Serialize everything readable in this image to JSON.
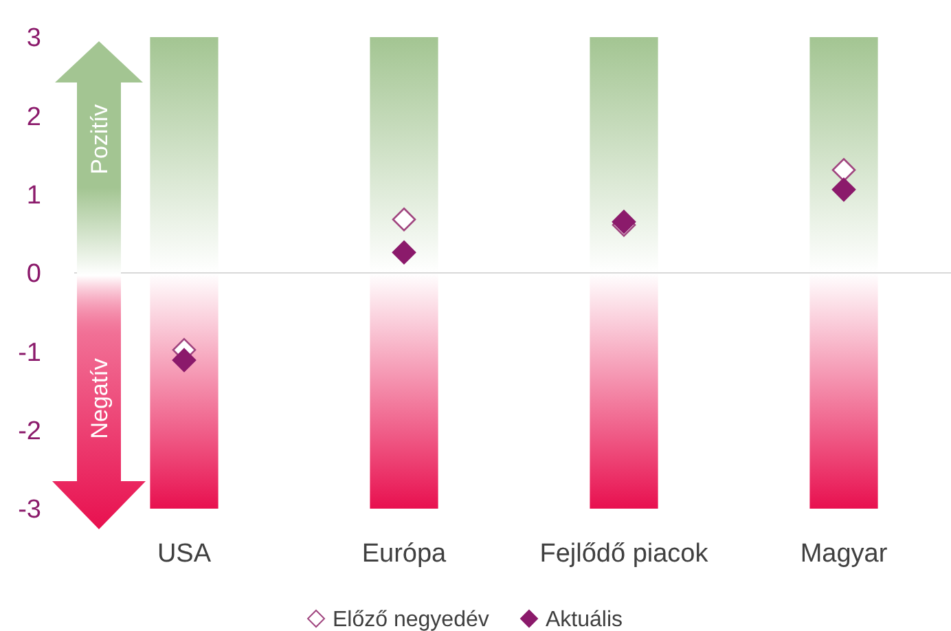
{
  "chart_data": {
    "type": "scatter",
    "categories": [
      "USA",
      "Európa",
      "Fejlődő piacok",
      "Magyar"
    ],
    "ylim": [
      -3,
      3
    ],
    "yticks": [
      -3,
      -2,
      -1,
      0,
      1,
      2,
      3
    ],
    "stacked": true,
    "legend": "bottom",
    "marker": "diamond",
    "series": [
      {
        "type": "bar",
        "color": "#a3c592",
        "values": [
          3,
          3,
          3,
          3
        ]
      },
      {
        "type": "bar",
        "color": "#e8104f",
        "values": [
          -3,
          -3,
          -3,
          -3
        ]
      },
      {
        "name": "Előző negyedév",
        "color": "#a0457f",
        "values": [
          -0.98,
          0.68,
          0.61,
          1.31
        ]
      },
      {
        "name": "Aktuális",
        "color": "#8b1a6b",
        "values": [
          -1.11,
          0.26,
          0.65,
          1.06
        ]
      }
    ],
    "ref_lines": [
      {
        "axis": "y",
        "value": 0,
        "color": "#d9d9d9"
      }
    ],
    "annotations": [
      "Pozitív",
      "Negatív"
    ]
  }
}
